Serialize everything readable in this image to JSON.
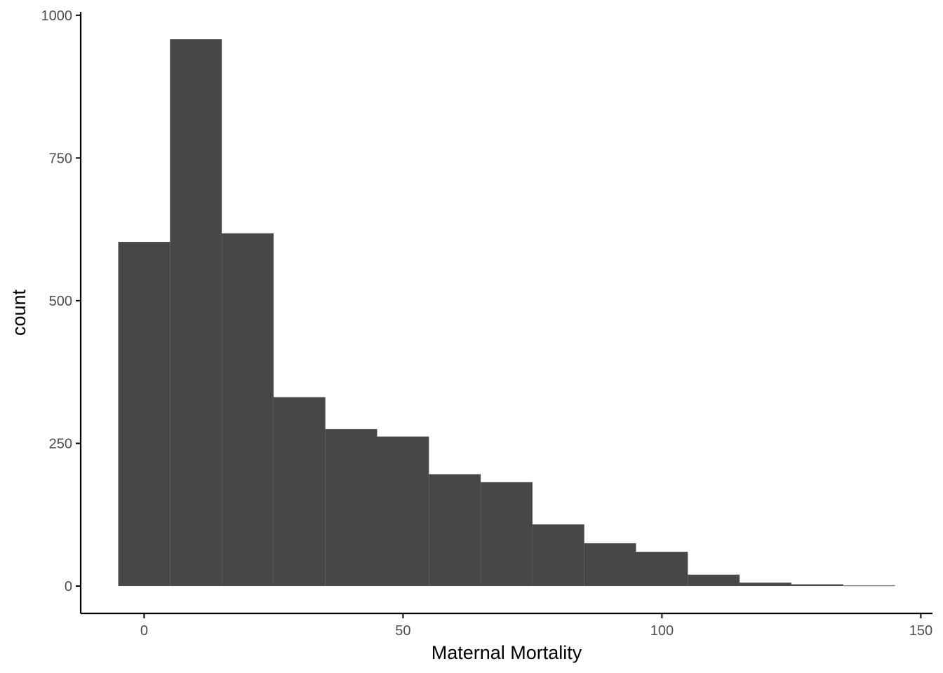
{
  "chart_data": {
    "type": "bar",
    "histogram": true,
    "xlabel": "Maternal Mortality",
    "ylabel": "count",
    "bin_width": 10,
    "bins": [
      {
        "x_start": -5,
        "x_end": 5,
        "count": 603
      },
      {
        "x_start": 5,
        "x_end": 15,
        "count": 958
      },
      {
        "x_start": 15,
        "x_end": 25,
        "count": 618
      },
      {
        "x_start": 25,
        "x_end": 35,
        "count": 331
      },
      {
        "x_start": 35,
        "x_end": 45,
        "count": 275
      },
      {
        "x_start": 45,
        "x_end": 55,
        "count": 262
      },
      {
        "x_start": 55,
        "x_end": 65,
        "count": 196
      },
      {
        "x_start": 65,
        "x_end": 75,
        "count": 182
      },
      {
        "x_start": 75,
        "x_end": 85,
        "count": 108
      },
      {
        "x_start": 85,
        "x_end": 95,
        "count": 75
      },
      {
        "x_start": 95,
        "x_end": 105,
        "count": 60
      },
      {
        "x_start": 105,
        "x_end": 115,
        "count": 20
      },
      {
        "x_start": 115,
        "x_end": 125,
        "count": 6
      },
      {
        "x_start": 125,
        "x_end": 135,
        "count": 3
      },
      {
        "x_start": 135,
        "x_end": 145,
        "count": 1
      }
    ],
    "xlim": [
      -12.25,
      152.25
    ],
    "ylim": [
      -47.9,
      1005.9
    ],
    "xticks": [
      {
        "value": 0,
        "label": "0"
      },
      {
        "value": 50,
        "label": "50"
      },
      {
        "value": 100,
        "label": "100"
      },
      {
        "value": 150,
        "label": "150"
      }
    ],
    "yticks": [
      {
        "value": 0,
        "label": "0"
      },
      {
        "value": 250,
        "label": "250"
      },
      {
        "value": 500,
        "label": "500"
      },
      {
        "value": 750,
        "label": "750"
      },
      {
        "value": 1000,
        "label": "1000"
      }
    ],
    "grid": false,
    "legend": "none",
    "bar_color": "#474747"
  }
}
